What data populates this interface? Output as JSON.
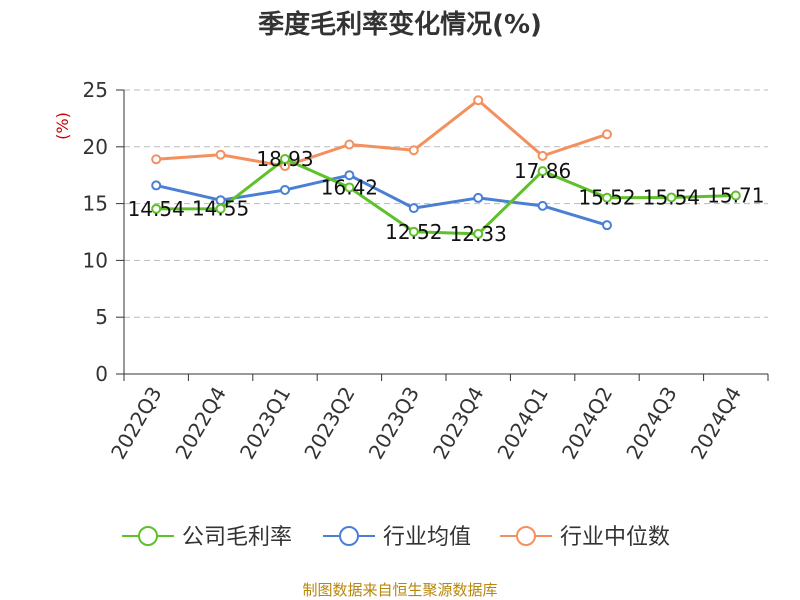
{
  "chart_data": {
    "type": "line",
    "title": "季度毛利率变化情况(%)",
    "ylabel": "(%)",
    "xlabel": "",
    "categories": [
      "2022Q3",
      "2022Q4",
      "2023Q1",
      "2023Q2",
      "2023Q3",
      "2023Q4",
      "2024Q1",
      "2024Q2",
      "2024Q3",
      "2024Q4"
    ],
    "ylim": [
      0,
      25
    ],
    "yticks": [
      0,
      5,
      10,
      15,
      20,
      25
    ],
    "grid": true,
    "legend_position": "bottom",
    "series": [
      {
        "name": "公司毛利率",
        "color": "#5ec12a",
        "values": [
          14.54,
          14.55,
          18.93,
          16.42,
          12.52,
          12.33,
          17.86,
          15.52,
          15.54,
          15.71
        ],
        "labels": [
          "14.54",
          "14.55",
          "18.93",
          "16.42",
          "12.52",
          "12.33",
          "17.86",
          "15.52",
          "15.54",
          "15.71"
        ]
      },
      {
        "name": "行业均值",
        "color": "#4a7fd4",
        "values": [
          16.6,
          15.3,
          16.2,
          17.5,
          14.6,
          15.5,
          14.8,
          13.1,
          null,
          null
        ]
      },
      {
        "name": "行业中位数",
        "color": "#f4905e",
        "values": [
          18.9,
          19.3,
          18.3,
          20.2,
          19.7,
          24.1,
          19.2,
          21.1,
          null,
          null
        ]
      }
    ],
    "source": "制图数据来自恒生聚源数据库"
  }
}
